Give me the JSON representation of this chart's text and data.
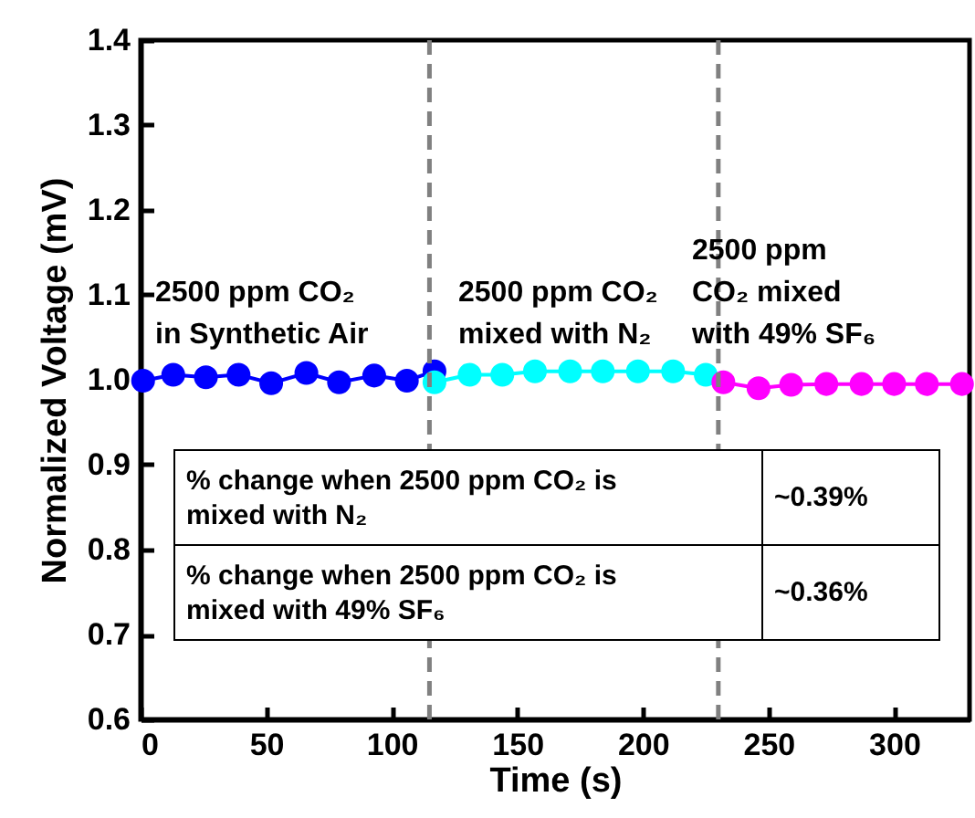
{
  "chart_data": {
    "type": "line",
    "xlabel": "Time (s)",
    "ylabel": "Normalized Voltage (mV)",
    "xlim": [
      0,
      330
    ],
    "ylim": [
      0.6,
      1.4
    ],
    "xticks": [
      0,
      50,
      100,
      150,
      200,
      250,
      300
    ],
    "yticks": [
      0.6,
      0.7,
      0.8,
      0.9,
      {
        "value": 1,
        "label": "1.0"
      },
      1.1,
      1.2,
      1.3,
      1.4
    ],
    "marker": "circle",
    "series": [
      {
        "color": "#0000ff",
        "x": [
          1,
          13,
          26,
          39,
          52,
          66,
          79,
          93,
          106,
          117
        ],
        "values": [
          0.999,
          1.006,
          1.003,
          1.006,
          0.996,
          1.008,
          0.997,
          1.005,
          0.999,
          1.01
        ]
      },
      {
        "color": "#00ffff",
        "x": [
          117,
          131,
          144,
          157,
          171,
          184,
          198,
          212,
          225
        ],
        "values": [
          0.997,
          1.006,
          1.006,
          1.01,
          1.01,
          1.01,
          1.01,
          1.01,
          1.006
        ]
      },
      {
        "color": "#ff00ff",
        "x": [
          232,
          246,
          259,
          273,
          287,
          300,
          313,
          327
        ],
        "values": [
          0.997,
          0.99,
          0.994,
          0.995,
          0.995,
          0.995,
          0.995,
          0.995
        ]
      }
    ],
    "ref_lines": [
      {
        "axis": "x",
        "value": 115,
        "color": "#808080",
        "line_style": "dashed"
      },
      {
        "axis": "x",
        "value": 230,
        "color": "#808080",
        "line_style": "dashed"
      }
    ],
    "annotations": [
      "2500 ppm CO₂\nin Synthetic Air",
      "2500 ppm CO₂\nmixed with N₂",
      "2500 ppm\nCO₂ mixed\nwith 49% SF₆",
      "% change when 2500 ppm CO₂ is\nmixed with N₂",
      "~0.39%",
      "% change when 2500 ppm CO₂ is\nmixed with 49% SF₆",
      "~0.36%"
    ]
  }
}
